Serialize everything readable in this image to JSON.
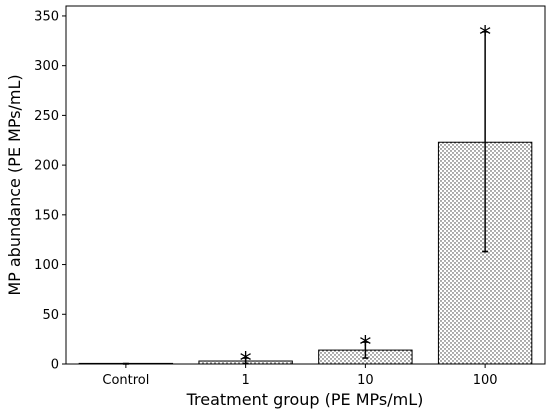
{
  "chart_data": {
    "type": "bar",
    "categories": [
      "Control",
      "1",
      "10",
      "100"
    ],
    "values": [
      0,
      3,
      14,
      223
    ],
    "error_low": [
      0,
      0.5,
      6,
      113
    ],
    "error_high": [
      0.5,
      6,
      22,
      334
    ],
    "annotations": [
      "",
      "*",
      "*",
      "*"
    ],
    "xlabel": "Treatment group (PE MPs/mL)",
    "ylabel": "MP abundance (PE MPs/mL)",
    "ylim": [
      0,
      360
    ],
    "yticks": [
      0,
      50,
      100,
      150,
      200,
      250,
      300,
      350
    ],
    "grid": false,
    "bar_pattern": "dotted"
  }
}
